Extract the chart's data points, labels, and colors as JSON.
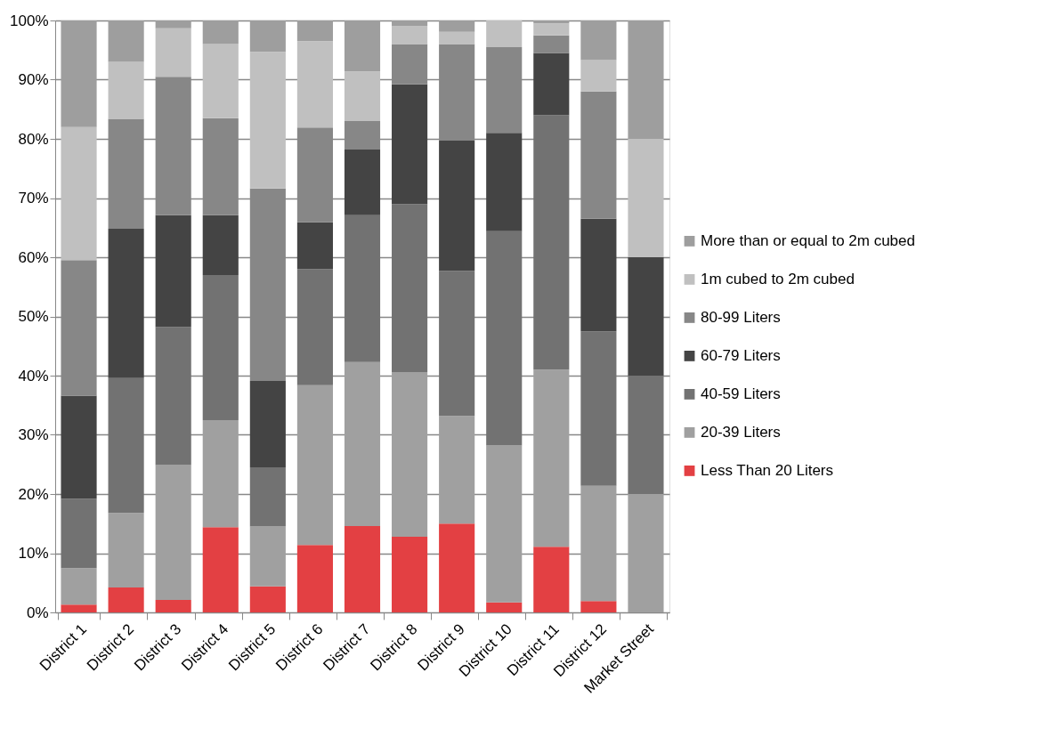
{
  "chart_data": {
    "type": "bar",
    "stacked": true,
    "categories": [
      "District 1",
      "District 2",
      "District 3",
      "District 4",
      "District 5",
      "District 6",
      "District 7",
      "District 8",
      "District 9",
      "District 10",
      "District 11",
      "District 12",
      "Market Street"
    ],
    "series": [
      {
        "name": "Less Than 20 Liters",
        "color": "#e34043",
        "values": [
          1.3,
          4.2,
          2.1,
          14.4,
          4.4,
          11.4,
          14.6,
          12.8,
          15.0,
          1.7,
          11.1,
          1.9,
          0
        ]
      },
      {
        "name": "20-39 Liters",
        "color": "#a0a0a0",
        "values": [
          6.2,
          12.6,
          22.8,
          18.1,
          10.1,
          27.0,
          27.7,
          27.8,
          18.2,
          26.5,
          29.9,
          19.5,
          20
        ]
      },
      {
        "name": "40-59 Liters",
        "color": "#727272",
        "values": [
          11.7,
          22.8,
          23.3,
          24.5,
          10.0,
          19.6,
          24.8,
          28.4,
          24.5,
          36.2,
          43.0,
          26.1,
          20
        ]
      },
      {
        "name": "60-79 Liters",
        "color": "#444444",
        "values": [
          17.4,
          25.2,
          18.9,
          10.1,
          14.6,
          7.9,
          11.1,
          20.2,
          22.0,
          16.6,
          10.5,
          19.0,
          20
        ]
      },
      {
        "name": "80-99 Liters",
        "color": "#878787",
        "values": [
          22.9,
          18.6,
          23.4,
          16.4,
          32.5,
          16.0,
          4.8,
          6.8,
          16.3,
          14.5,
          3.0,
          21.5,
          0
        ]
      },
      {
        "name": "1m cubed to 2m cubed",
        "color": "#c0c0c0",
        "values": [
          22.5,
          9.6,
          8.2,
          12.5,
          23.1,
          14.6,
          8.4,
          3.1,
          2.1,
          4.5,
          2.0,
          5.3,
          20
        ]
      },
      {
        "name": "More than or equal to 2m cubed",
        "color": "#9e9e9e",
        "values": [
          18.0,
          7.0,
          1.3,
          4.0,
          5.3,
          3.5,
          8.6,
          0.9,
          1.9,
          0,
          0.5,
          6.7,
          20
        ]
      }
    ],
    "ylim": [
      0,
      100
    ],
    "yticks": [
      {
        "value": 0,
        "label": "0%"
      },
      {
        "value": 10,
        "label": "10%"
      },
      {
        "value": 20,
        "label": "20%"
      },
      {
        "value": 30,
        "label": "30%"
      },
      {
        "value": 40,
        "label": "40%"
      },
      {
        "value": 50,
        "label": "50%"
      },
      {
        "value": 60,
        "label": "60%"
      },
      {
        "value": 70,
        "label": "70%"
      },
      {
        "value": 80,
        "label": "80%"
      },
      {
        "value": 90,
        "label": "90%"
      },
      {
        "value": 100,
        "label": "100%"
      }
    ],
    "grid": "y",
    "legend": "right"
  }
}
